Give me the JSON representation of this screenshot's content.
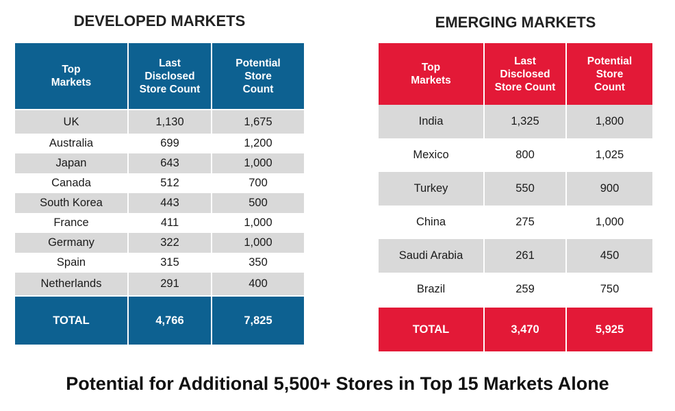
{
  "developed": {
    "title": "DEVELOPED MARKETS",
    "headers": [
      "Top\nMarkets",
      "Last\nDisclosed\nStore Count",
      "Potential\nStore\nCount"
    ],
    "rows": [
      {
        "market": "UK",
        "last": "1,130",
        "potential": "1,675"
      },
      {
        "market": "Australia",
        "last": "699",
        "potential": "1,200"
      },
      {
        "market": "Japan",
        "last": "643",
        "potential": "1,000"
      },
      {
        "market": "Canada",
        "last": "512",
        "potential": "700"
      },
      {
        "market": "South Korea",
        "last": "443",
        "potential": "500"
      },
      {
        "market": "France",
        "last": "411",
        "potential": "1,000"
      },
      {
        "market": "Germany",
        "last": "322",
        "potential": "1,000"
      },
      {
        "market": "Spain",
        "last": "315",
        "potential": "350"
      },
      {
        "market": "Netherlands",
        "last": "291",
        "potential": "400"
      }
    ],
    "total": {
      "label": "TOTAL",
      "last": "4,766",
      "potential": "7,825"
    },
    "accent_color": "#0d6191"
  },
  "emerging": {
    "title": "EMERGING MARKETS",
    "headers": [
      "Top\nMarkets",
      "Last\nDisclosed\nStore Count",
      "Potential\nStore\nCount"
    ],
    "rows": [
      {
        "market": "India",
        "last": "1,325",
        "potential": "1,800"
      },
      {
        "market": "Mexico",
        "last": "800",
        "potential": "1,025"
      },
      {
        "market": "Turkey",
        "last": "550",
        "potential": "900"
      },
      {
        "market": "China",
        "last": "275",
        "potential": "1,000"
      },
      {
        "market": "Saudi Arabia",
        "last": "261",
        "potential": "450"
      },
      {
        "market": "Brazil",
        "last": "259",
        "potential": "750"
      }
    ],
    "total": {
      "label": "TOTAL",
      "last": "3,470",
      "potential": "5,925"
    },
    "accent_color": "#e31937"
  },
  "tagline": "Potential for Additional 5,500+ Stores in Top 15 Markets Alone",
  "row_alt_color": "#d9d9d9"
}
